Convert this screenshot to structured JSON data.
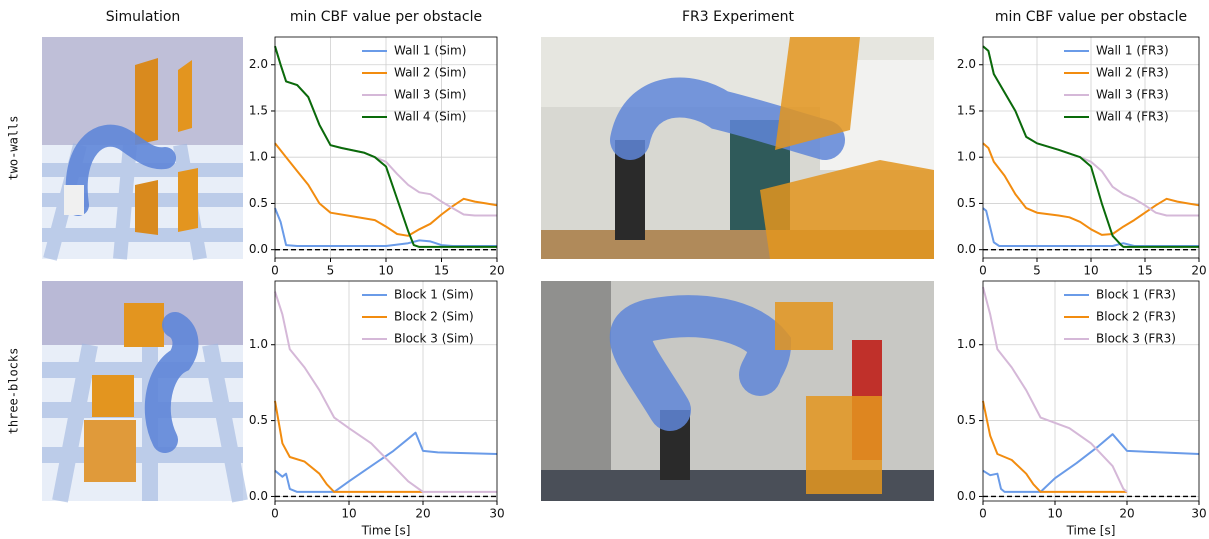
{
  "figure": {
    "headers": [
      "Simulation",
      "min CBF value per obstacle",
      "FR3 Experiment",
      "min CBF value per obstacle"
    ],
    "row_labels": [
      "two-walls",
      "three-blocks"
    ]
  },
  "chart_data": [
    {
      "type": "line",
      "xlim": [
        0,
        20
      ],
      "ylim": [
        -0.09,
        2.3
      ],
      "xticks": [
        0,
        5,
        10,
        15,
        20
      ],
      "yticks": [
        {
          "value": 0,
          "label": "0.0"
        },
        {
          "value": 0.5,
          "label": "0.5"
        },
        {
          "value": 1,
          "label": "1.0"
        },
        {
          "value": 1.5,
          "label": "1.5"
        },
        {
          "value": 2,
          "label": "2.0"
        }
      ],
      "grid": true,
      "legend": "upper right",
      "reference_line": 0,
      "series": [
        {
          "name": "Wall 1 (Sim)",
          "color": "#6a9be8",
          "x": [
            0,
            0.5,
            1,
            2,
            5,
            10,
            12,
            13,
            14,
            15,
            16,
            20
          ],
          "values": [
            0.45,
            0.3,
            0.05,
            0.04,
            0.04,
            0.04,
            0.07,
            0.1,
            0.09,
            0.05,
            0.04,
            0.04
          ]
        },
        {
          "name": "Wall 2 (Sim)",
          "color": "#f28c0f",
          "x": [
            0,
            1,
            2,
            3,
            4,
            5,
            7,
            9,
            10,
            11,
            12,
            13,
            14,
            15,
            16,
            17,
            18,
            19,
            20
          ],
          "values": [
            1.15,
            1.0,
            0.85,
            0.7,
            0.5,
            0.4,
            0.36,
            0.32,
            0.25,
            0.17,
            0.15,
            0.22,
            0.28,
            0.38,
            0.47,
            0.55,
            0.52,
            0.5,
            0.48
          ]
        },
        {
          "name": "Wall 3 (Sim)",
          "color": "#d5b8d8",
          "x": [
            0,
            0.5,
            1,
            2,
            3,
            4,
            5,
            6,
            8,
            9,
            10,
            11,
            12,
            13,
            14,
            15,
            16,
            17,
            18,
            20
          ],
          "values": [
            2.2,
            2.0,
            1.82,
            1.78,
            1.65,
            1.35,
            1.13,
            1.1,
            1.05,
            1.0,
            0.95,
            0.82,
            0.7,
            0.62,
            0.6,
            0.52,
            0.45,
            0.38,
            0.37,
            0.37
          ]
        },
        {
          "name": "Wall 4 (Sim)",
          "color": "#0a6b0a",
          "x": [
            0,
            0.5,
            1,
            2,
            3,
            4,
            5,
            6,
            8,
            9,
            10,
            11,
            12,
            12.5,
            13,
            20
          ],
          "values": [
            2.2,
            2.0,
            1.82,
            1.78,
            1.65,
            1.35,
            1.13,
            1.1,
            1.05,
            1.0,
            0.9,
            0.55,
            0.2,
            0.05,
            0.03,
            0.03
          ]
        }
      ]
    },
    {
      "type": "line",
      "xlabel": "Time [s]",
      "xlim": [
        0,
        30
      ],
      "ylim": [
        -0.03,
        1.42
      ],
      "xticks": [
        0,
        10,
        20,
        30
      ],
      "yticks": [
        {
          "value": 0,
          "label": "0.0"
        },
        {
          "value": 0.5,
          "label": "0.5"
        },
        {
          "value": 1,
          "label": "1.0"
        }
      ],
      "grid": true,
      "legend": "upper right",
      "reference_line": 0,
      "series": [
        {
          "name": "Block 1 (Sim)",
          "color": "#6a9be8",
          "x": [
            0,
            1,
            1.5,
            2,
            3,
            8,
            10,
            13,
            16,
            18,
            19,
            20,
            22,
            30
          ],
          "values": [
            0.17,
            0.13,
            0.15,
            0.05,
            0.03,
            0.03,
            0.1,
            0.2,
            0.3,
            0.38,
            0.42,
            0.3,
            0.29,
            0.28
          ]
        },
        {
          "name": "Block 2 (Sim)",
          "color": "#f28c0f",
          "x": [
            0,
            1,
            2,
            4,
            6,
            7,
            8,
            20
          ],
          "values": [
            0.63,
            0.35,
            0.26,
            0.23,
            0.15,
            0.08,
            0.03,
            0.03
          ]
        },
        {
          "name": "Block 3 (Sim)",
          "color": "#d5b8d8",
          "x": [
            0,
            1,
            2,
            4,
            6,
            8,
            10,
            13,
            16,
            18,
            20,
            30
          ],
          "values": [
            1.35,
            1.2,
            0.97,
            0.85,
            0.7,
            0.52,
            0.45,
            0.35,
            0.2,
            0.1,
            0.03,
            0.03
          ]
        }
      ]
    },
    {
      "type": "line",
      "xlim": [
        0,
        20
      ],
      "ylim": [
        -0.09,
        2.3
      ],
      "xticks": [
        0,
        5,
        10,
        15,
        20
      ],
      "yticks": [
        {
          "value": 0,
          "label": "0.0"
        },
        {
          "value": 0.5,
          "label": "0.5"
        },
        {
          "value": 1,
          "label": "1.0"
        },
        {
          "value": 1.5,
          "label": "1.5"
        },
        {
          "value": 2,
          "label": "2.0"
        }
      ],
      "grid": true,
      "legend": "upper right",
      "reference_line": 0,
      "series": [
        {
          "name": "Wall 1 (FR3)",
          "color": "#6a9be8",
          "x": [
            0,
            0.3,
            1,
            1.5,
            12,
            13,
            14,
            20
          ],
          "values": [
            0.45,
            0.42,
            0.08,
            0.04,
            0.04,
            0.07,
            0.04,
            0.04
          ]
        },
        {
          "name": "Wall 2 (FR3)",
          "color": "#f28c0f",
          "x": [
            0,
            0.5,
            1,
            2,
            3,
            4,
            5,
            7,
            8,
            9,
            10,
            11,
            12,
            13,
            14,
            15,
            16,
            17,
            18,
            20
          ],
          "values": [
            1.15,
            1.1,
            0.95,
            0.8,
            0.6,
            0.45,
            0.4,
            0.37,
            0.35,
            0.3,
            0.22,
            0.16,
            0.17,
            0.25,
            0.32,
            0.4,
            0.48,
            0.55,
            0.52,
            0.48
          ]
        },
        {
          "name": "Wall 3 (FR3)",
          "color": "#d5b8d8",
          "x": [
            0,
            0.5,
            1,
            2,
            3,
            4,
            5,
            7,
            9,
            10,
            11,
            12,
            13,
            14,
            15,
            16,
            17,
            20
          ],
          "values": [
            2.2,
            2.15,
            1.9,
            1.7,
            1.5,
            1.22,
            1.15,
            1.08,
            1.0,
            0.95,
            0.85,
            0.68,
            0.6,
            0.55,
            0.48,
            0.4,
            0.37,
            0.37
          ]
        },
        {
          "name": "Wall 4 (FR3)",
          "color": "#0a6b0a",
          "x": [
            0,
            0.5,
            1,
            2,
            3,
            4,
            5,
            7,
            9,
            10,
            11,
            12,
            12.8,
            13,
            20
          ],
          "values": [
            2.2,
            2.15,
            1.9,
            1.7,
            1.5,
            1.22,
            1.15,
            1.08,
            1.0,
            0.9,
            0.5,
            0.15,
            0.05,
            0.03,
            0.03
          ]
        }
      ]
    },
    {
      "type": "line",
      "xlabel": "Time [s]",
      "xlim": [
        0,
        30
      ],
      "ylim": [
        -0.03,
        1.42
      ],
      "xticks": [
        0,
        10,
        20,
        30
      ],
      "yticks": [
        {
          "value": 0,
          "label": "0.0"
        },
        {
          "value": 0.5,
          "label": "0.5"
        },
        {
          "value": 1,
          "label": "1.0"
        }
      ],
      "grid": true,
      "legend": "upper right",
      "reference_line": 0,
      "series": [
        {
          "name": "Block 1 (FR3)",
          "color": "#6a9be8",
          "x": [
            0,
            1,
            2,
            2.5,
            3,
            8,
            10,
            13,
            16,
            18,
            20,
            30
          ],
          "values": [
            0.17,
            0.14,
            0.15,
            0.05,
            0.03,
            0.03,
            0.12,
            0.22,
            0.33,
            0.41,
            0.3,
            0.28
          ]
        },
        {
          "name": "Block 2 (FR3)",
          "color": "#f28c0f",
          "x": [
            0,
            1,
            2,
            4,
            6,
            7,
            8,
            20
          ],
          "values": [
            0.63,
            0.4,
            0.28,
            0.24,
            0.15,
            0.08,
            0.03,
            0.03
          ]
        },
        {
          "name": "Block 3 (FR3)",
          "color": "#d5b8d8",
          "x": [
            0,
            1,
            2,
            4,
            6,
            8,
            12,
            15,
            18,
            19.5,
            20
          ],
          "values": [
            1.38,
            1.2,
            0.97,
            0.85,
            0.7,
            0.52,
            0.45,
            0.35,
            0.2,
            0.05,
            0.03
          ]
        }
      ]
    }
  ]
}
